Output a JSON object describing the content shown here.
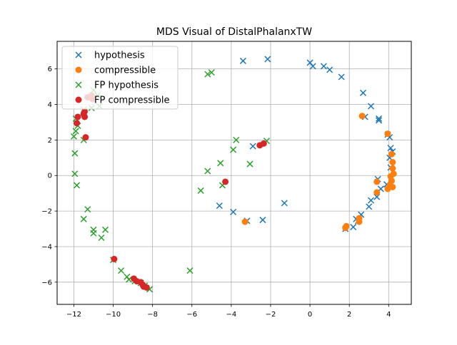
{
  "chart_data": {
    "type": "scatter",
    "title": "MDS Visual of DistalPhalanxTW",
    "xlabel": "",
    "ylabel": "",
    "xlim": [
      -12.85,
      5.15
    ],
    "ylim": [
      -7.25,
      7.55
    ],
    "xticks": [
      -12,
      -10,
      -8,
      -6,
      -4,
      -2,
      0,
      2,
      4
    ],
    "yticks": [
      -6,
      -4,
      -2,
      0,
      2,
      4,
      6
    ],
    "xtick_labels": [
      "−12",
      "−10",
      "−8",
      "−6",
      "−4",
      "−2",
      "0",
      "2",
      "4"
    ],
    "ytick_labels": [
      "−6",
      "−4",
      "−2",
      "0",
      "2",
      "4",
      "6"
    ],
    "grid": true,
    "legend_position": "top-left",
    "series": [
      {
        "name": "hypothesis",
        "marker": "x",
        "color": "#1f77b4",
        "points": [
          [
            -3.4,
            6.45
          ],
          [
            -2.15,
            6.55
          ],
          [
            0.0,
            6.35
          ],
          [
            0.15,
            6.15
          ],
          [
            0.7,
            6.15
          ],
          [
            1.0,
            5.95
          ],
          [
            1.6,
            5.55
          ],
          [
            2.7,
            4.65
          ],
          [
            3.1,
            3.9
          ],
          [
            3.5,
            3.2
          ],
          [
            3.5,
            3.1
          ],
          [
            2.8,
            3.3
          ],
          [
            3.95,
            2.3
          ],
          [
            4.05,
            2.15
          ],
          [
            4.1,
            1.55
          ],
          [
            4.2,
            1.35
          ],
          [
            4.05,
            1.0
          ],
          [
            4.1,
            0.45
          ],
          [
            3.45,
            -0.2
          ],
          [
            3.9,
            -0.5
          ],
          [
            3.6,
            -0.75
          ],
          [
            3.4,
            -1.2
          ],
          [
            3.1,
            -1.4
          ],
          [
            3.0,
            -1.75
          ],
          [
            2.6,
            -2.2
          ],
          [
            2.45,
            -2.55
          ],
          [
            2.2,
            -2.9
          ],
          [
            1.8,
            -3.0
          ],
          [
            2.35,
            -2.45
          ],
          [
            -2.9,
            1.65
          ],
          [
            -1.3,
            -1.55
          ],
          [
            -4.6,
            -1.7
          ],
          [
            -3.9,
            -2.05
          ],
          [
            -3.2,
            -2.55
          ],
          [
            -2.4,
            -2.5
          ]
        ]
      },
      {
        "name": "compressible",
        "marker": "o",
        "color": "#ff7f0e",
        "points": [
          [
            2.65,
            3.35
          ],
          [
            3.95,
            2.35
          ],
          [
            4.15,
            1.2
          ],
          [
            4.2,
            0.75
          ],
          [
            4.2,
            0.4
          ],
          [
            4.25,
            0.1
          ],
          [
            4.1,
            -0.05
          ],
          [
            4.15,
            -0.3
          ],
          [
            4.05,
            -0.55
          ],
          [
            4.2,
            -0.65
          ],
          [
            3.95,
            -0.75
          ],
          [
            3.4,
            -0.35
          ],
          [
            3.4,
            -0.95
          ],
          [
            2.5,
            -2.4
          ],
          [
            2.5,
            -2.6
          ],
          [
            1.85,
            -2.85
          ],
          [
            1.8,
            -2.95
          ],
          [
            -3.3,
            -2.6
          ]
        ]
      },
      {
        "name": "FP hypothesis",
        "marker": "x",
        "color": "#2ca02c",
        "points": [
          [
            -11.0,
            4.8
          ],
          [
            -10.8,
            4.5
          ],
          [
            -10.7,
            3.9
          ],
          [
            -11.1,
            3.8
          ],
          [
            -11.5,
            3.7
          ],
          [
            -11.9,
            3.2
          ],
          [
            -11.8,
            2.8
          ],
          [
            -11.9,
            2.5
          ],
          [
            -12.0,
            2.2
          ],
          [
            -11.5,
            2.0
          ],
          [
            -11.95,
            1.25
          ],
          [
            -11.95,
            0.1
          ],
          [
            -11.85,
            -0.55
          ],
          [
            -11.3,
            -1.9
          ],
          [
            -11.5,
            -2.45
          ],
          [
            -11.0,
            -3.05
          ],
          [
            -11.0,
            -3.25
          ],
          [
            -10.6,
            -3.5
          ],
          [
            -10.4,
            -3.05
          ],
          [
            -10.0,
            -4.75
          ],
          [
            -9.6,
            -5.35
          ],
          [
            -9.3,
            -5.7
          ],
          [
            -9.2,
            -5.85
          ],
          [
            -8.9,
            -5.95
          ],
          [
            -8.6,
            -6.05
          ],
          [
            -8.4,
            -6.2
          ],
          [
            -8.15,
            -6.4
          ],
          [
            -6.1,
            -5.35
          ],
          [
            -5.55,
            -0.85
          ],
          [
            -5.2,
            0.25
          ],
          [
            -4.55,
            0.7
          ],
          [
            -4.45,
            -0.55
          ],
          [
            -3.75,
            2.0
          ],
          [
            -3.9,
            1.45
          ],
          [
            -3.05,
            0.65
          ],
          [
            -2.2,
            1.95
          ],
          [
            -5.2,
            5.7
          ],
          [
            -5.0,
            5.8
          ]
        ]
      },
      {
        "name": "FP compressible",
        "marker": "o",
        "color": "#d62728",
        "points": [
          [
            -11.1,
            4.5
          ],
          [
            -11.3,
            4.4
          ],
          [
            -11.05,
            4.3
          ],
          [
            -11.45,
            3.6
          ],
          [
            -11.5,
            3.45
          ],
          [
            -11.45,
            3.3
          ],
          [
            -11.8,
            3.3
          ],
          [
            -11.85,
            2.95
          ],
          [
            -11.4,
            2.15
          ],
          [
            -9.95,
            -4.7
          ],
          [
            -8.95,
            -5.8
          ],
          [
            -8.8,
            -5.95
          ],
          [
            -8.6,
            -6.0
          ],
          [
            -8.5,
            -6.15
          ],
          [
            -8.45,
            -6.25
          ],
          [
            -8.3,
            -6.3
          ],
          [
            -4.3,
            -0.35
          ],
          [
            -2.55,
            1.7
          ],
          [
            -2.35,
            1.8
          ]
        ]
      }
    ]
  }
}
